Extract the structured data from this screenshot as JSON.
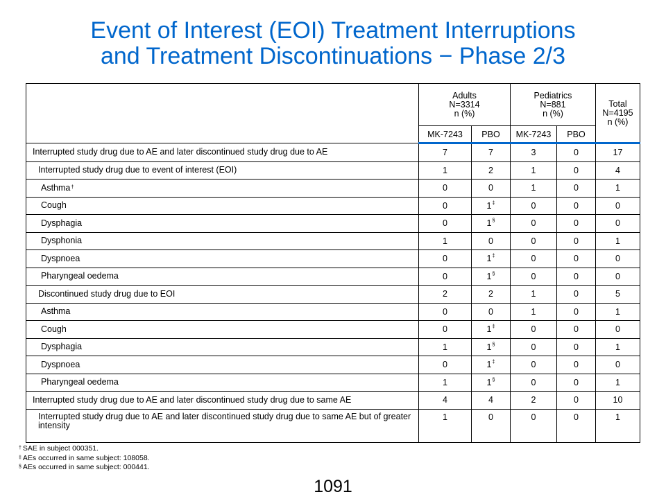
{
  "title": {
    "line1": "Event of Interest (EOI) Treatment Interruptions",
    "line2": "and Treatment Discontinuations − Phase 2/3"
  },
  "table": {
    "groups": {
      "adults": {
        "name": "Adults",
        "n": "N=3314",
        "unit": "n (%)"
      },
      "pediatrics": {
        "name": "Pediatrics",
        "n": "N=881",
        "unit": "n (%)"
      },
      "total": {
        "name": "Total",
        "n": "N=4195",
        "unit": "n (%)"
      }
    },
    "columns": [
      "MK-7243",
      "PBO",
      "MK-7243",
      "PBO"
    ],
    "rows": [
      {
        "label": "Interrupted study drug due to AE and later discontinued study drug due to AE",
        "level": 0,
        "mark": "",
        "values": [
          "7",
          "7",
          "3",
          "0",
          "17"
        ],
        "marks": [
          "",
          "",
          "",
          "",
          ""
        ]
      },
      {
        "label": "Interrupted study drug due to event of interest (EOI)",
        "level": 1,
        "mark": "",
        "values": [
          "1",
          "2",
          "1",
          "0",
          "4"
        ],
        "marks": [
          "",
          "",
          "",
          "",
          ""
        ]
      },
      {
        "label": "Asthma",
        "level": 2,
        "mark": "†",
        "values": [
          "0",
          "0",
          "1",
          "0",
          "1"
        ],
        "marks": [
          "",
          "",
          "",
          "",
          ""
        ]
      },
      {
        "label": "Cough",
        "level": 2,
        "mark": "",
        "values": [
          "0",
          "1",
          "0",
          "0",
          "0"
        ],
        "marks": [
          "",
          "‡",
          "",
          "",
          ""
        ]
      },
      {
        "label": "Dysphagia",
        "level": 2,
        "mark": "",
        "values": [
          "0",
          "1",
          "0",
          "0",
          "0"
        ],
        "marks": [
          "",
          "§",
          "",
          "",
          ""
        ]
      },
      {
        "label": "Dysphonia",
        "level": 2,
        "mark": "",
        "values": [
          "1",
          "0",
          "0",
          "0",
          "1"
        ],
        "marks": [
          "",
          "",
          "",
          "",
          ""
        ]
      },
      {
        "label": "Dyspnoea",
        "level": 2,
        "mark": "",
        "values": [
          "0",
          "1",
          "0",
          "0",
          "0"
        ],
        "marks": [
          "",
          "‡",
          "",
          "",
          ""
        ]
      },
      {
        "label": "Pharyngeal oedema",
        "level": 2,
        "mark": "",
        "values": [
          "0",
          "1",
          "0",
          "0",
          "0"
        ],
        "marks": [
          "",
          "§",
          "",
          "",
          ""
        ]
      },
      {
        "label": "Discontinued study drug due to EOI",
        "level": 1,
        "mark": "",
        "values": [
          "2",
          "2",
          "1",
          "0",
          "5"
        ],
        "marks": [
          "",
          "",
          "",
          "",
          ""
        ]
      },
      {
        "label": "Asthma",
        "level": 2,
        "mark": "",
        "values": [
          "0",
          "0",
          "1",
          "0",
          "1"
        ],
        "marks": [
          "",
          "",
          "",
          "",
          ""
        ]
      },
      {
        "label": "Cough",
        "level": 2,
        "mark": "",
        "values": [
          "0",
          "1",
          "0",
          "0",
          "0"
        ],
        "marks": [
          "",
          "‡",
          "",
          "",
          ""
        ]
      },
      {
        "label": "Dysphagia",
        "level": 2,
        "mark": "",
        "values": [
          "1",
          "1",
          "0",
          "0",
          "1"
        ],
        "marks": [
          "",
          "§",
          "",
          "",
          ""
        ]
      },
      {
        "label": "Dyspnoea",
        "level": 2,
        "mark": "",
        "values": [
          "0",
          "1",
          "0",
          "0",
          "0"
        ],
        "marks": [
          "",
          "‡",
          "",
          "",
          ""
        ]
      },
      {
        "label": "Pharyngeal oedema",
        "level": 2,
        "mark": "",
        "values": [
          "1",
          "1",
          "0",
          "0",
          "1"
        ],
        "marks": [
          "",
          "§",
          "",
          "",
          ""
        ]
      },
      {
        "label": "Interrupted study drug due to AE and later discontinued study drug due to same AE",
        "level": 0,
        "mark": "",
        "values": [
          "4",
          "4",
          "2",
          "0",
          "10"
        ],
        "marks": [
          "",
          "",
          "",
          "",
          ""
        ]
      },
      {
        "label": "Interrupted study drug due to AE and later discontinued study drug due to same AE but of greater intensity",
        "level": 1,
        "mark": "",
        "values": [
          "1",
          "0",
          "0",
          "0",
          "1"
        ],
        "marks": [
          "",
          "",
          "",
          "",
          ""
        ],
        "tall": true
      }
    ]
  },
  "footnotes": [
    {
      "mark": "†",
      "text": "SAE in subject 000351."
    },
    {
      "mark": "‡",
      "text": "AEs occurred in same subject: 108058."
    },
    {
      "mark": "§",
      "text": "AEs occurred in same subject: 000441."
    }
  ],
  "page_number": "1091"
}
